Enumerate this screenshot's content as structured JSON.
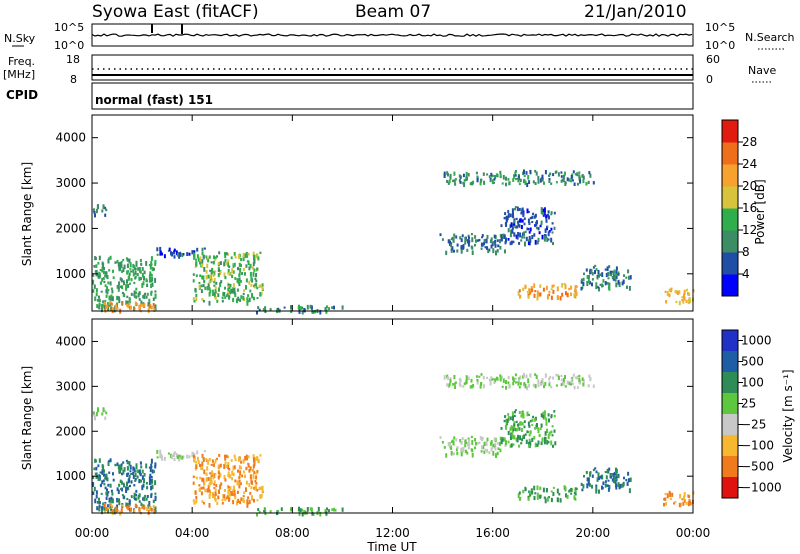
{
  "header": {
    "station": "Syowa East (fitACF)",
    "beam": "Beam 07",
    "date": "21/Jan/2010"
  },
  "top_panels": {
    "noise": {
      "left_label": "N.Sky",
      "right_label": "N.Search",
      "left_ticks": [
        "10^5",
        "10^0"
      ],
      "right_ticks": [
        "10^5",
        "10^0"
      ]
    },
    "freq": {
      "left_label_1": "Freq.",
      "left_label_2": "[MHz]",
      "left_ticks": [
        "18",
        "8"
      ],
      "right_label": "Nave",
      "right_ticks": [
        "60",
        "0"
      ]
    },
    "cpid": {
      "label": "CPID",
      "mode": "normal (fast) 151"
    }
  },
  "colorbars": {
    "power": {
      "label": "Power [dB]",
      "ticks": [
        "4",
        "8",
        "12",
        "16",
        "20",
        "24",
        "28"
      ],
      "colors": [
        "#0000ff",
        "#1f4ea6",
        "#3c8c64",
        "#2fae4b",
        "#d8c43c",
        "#f7a12e",
        "#ef6e1a",
        "#e11b10"
      ]
    },
    "velocity": {
      "label": "Velocity [m s⁻¹]",
      "ticks": [
        "1000",
        "500",
        "100",
        "25",
        "−25",
        "−100",
        "−500",
        "−1000"
      ],
      "colors": [
        "#2131c6",
        "#1f5da4",
        "#2e8c57",
        "#5dc83e",
        "#c8c8c8",
        "#f7b830",
        "#f07b1c",
        "#e01210"
      ]
    }
  },
  "colors": {
    "axis": "#000000",
    "background": "#ffffff",
    "noise_trace": "#000000"
  },
  "chart_data": [
    {
      "type": "heatmap",
      "title": "Power",
      "ylabel": "Slant Range [km]",
      "xlabel": "Time UT",
      "xticks": [
        "00:00",
        "04:00",
        "08:00",
        "12:00",
        "16:00",
        "20:00",
        "00:00"
      ],
      "yticks": [
        1000,
        2000,
        3000,
        4000
      ],
      "ylim": [
        180,
        4500
      ],
      "xlim": [
        0,
        24
      ],
      "colorbar": "Power [dB]",
      "regions": [
        {
          "t": [
            0.0,
            0.6
          ],
          "r": [
            2300,
            2550
          ],
          "value": 8
        },
        {
          "t": [
            0.0,
            2.5
          ],
          "r": [
            250,
            1400
          ],
          "value": 12
        },
        {
          "t": [
            0.2,
            2.5
          ],
          "r": [
            200,
            400
          ],
          "value": 24
        },
        {
          "t": [
            2.5,
            4.5
          ],
          "r": [
            1400,
            1600
          ],
          "value": 6
        },
        {
          "t": [
            4.0,
            6.8
          ],
          "r": [
            400,
            1500
          ],
          "value": 14
        },
        {
          "t": [
            6.5,
            10.0
          ],
          "r": [
            180,
            320
          ],
          "value": 10
        },
        {
          "t": [
            13.8,
            16.5
          ],
          "r": [
            1500,
            1900
          ],
          "value": 8
        },
        {
          "t": [
            16.3,
            18.5
          ],
          "r": [
            1700,
            2500
          ],
          "value": 6
        },
        {
          "t": [
            17.0,
            19.5
          ],
          "r": [
            500,
            800
          ],
          "value": 22
        },
        {
          "t": [
            19.5,
            21.5
          ],
          "r": [
            700,
            1200
          ],
          "value": 9
        },
        {
          "t": [
            22.8,
            24.0
          ],
          "r": [
            400,
            700
          ],
          "value": 20
        },
        {
          "t": [
            14.0,
            20.0
          ],
          "r": [
            3000,
            3300
          ],
          "value": 10
        }
      ]
    },
    {
      "type": "heatmap",
      "title": "Velocity",
      "ylabel": "Slant Range [km]",
      "xlabel": "Time UT",
      "xticks": [
        "00:00",
        "04:00",
        "08:00",
        "12:00",
        "16:00",
        "20:00",
        "00:00"
      ],
      "yticks": [
        1000,
        2000,
        3000,
        4000
      ],
      "ylim": [
        180,
        4500
      ],
      "xlim": [
        0,
        24
      ],
      "colorbar": "Velocity [m s⁻¹]",
      "regions": [
        {
          "t": [
            0.0,
            0.6
          ],
          "r": [
            2300,
            2550
          ],
          "value": 0
        },
        {
          "t": [
            0.0,
            2.5
          ],
          "r": [
            250,
            1400
          ],
          "value": 300
        },
        {
          "t": [
            0.2,
            2.5
          ],
          "r": [
            200,
            400
          ],
          "value": -300
        },
        {
          "t": [
            2.5,
            4.5
          ],
          "r": [
            1400,
            1600
          ],
          "value": 0
        },
        {
          "t": [
            4.0,
            6.8
          ],
          "r": [
            400,
            1500
          ],
          "value": -300
        },
        {
          "t": [
            6.5,
            10.0
          ],
          "r": [
            180,
            320
          ],
          "value": 60
        },
        {
          "t": [
            13.8,
            16.5
          ],
          "r": [
            1500,
            1900
          ],
          "value": 0
        },
        {
          "t": [
            16.3,
            18.5
          ],
          "r": [
            1700,
            2500
          ],
          "value": 60
        },
        {
          "t": [
            17.0,
            19.5
          ],
          "r": [
            500,
            800
          ],
          "value": 60
        },
        {
          "t": [
            19.5,
            21.5
          ],
          "r": [
            700,
            1200
          ],
          "value": 300
        },
        {
          "t": [
            22.8,
            24.0
          ],
          "r": [
            400,
            700
          ],
          "value": -300
        },
        {
          "t": [
            14.0,
            20.0
          ],
          "r": [
            3000,
            3300
          ],
          "value": 0
        }
      ]
    }
  ]
}
